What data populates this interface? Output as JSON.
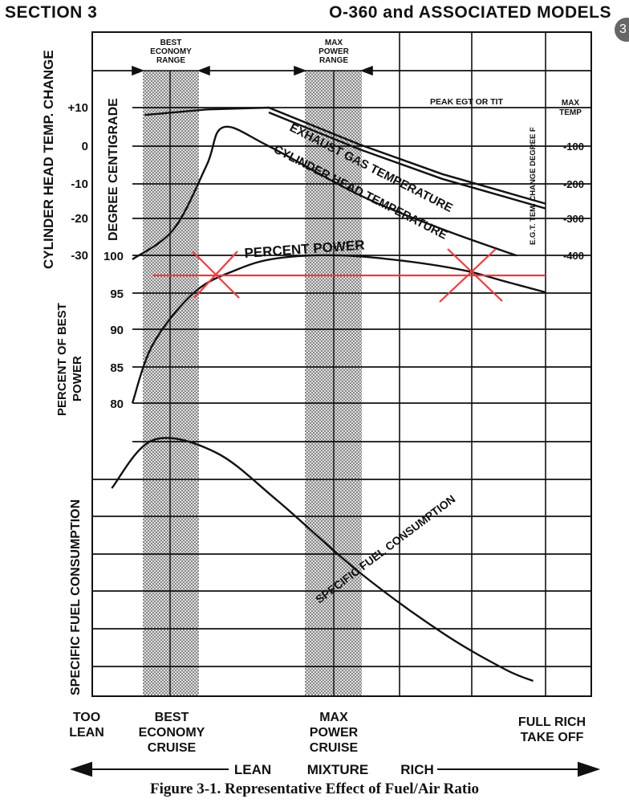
{
  "header": {
    "section": "SECTION 3",
    "models": "O-360 and ASSOCIATED MODELS",
    "badge": "3"
  },
  "caption": "Figure 3-1. Representative Effect of Fuel/Air Ratio",
  "colors": {
    "ink": "#111111",
    "markup": "#f03a3a",
    "shade": "#cfcfcf"
  },
  "axes": {
    "cht_label": "CYLINDER HEAD TEMP. CHANGE",
    "deg_c_label": "DEGREE CENTIGRADE",
    "power_label_1": "PERCENT OF BEST",
    "power_label_2": "POWER",
    "sfc_label": "SPECIFIC FUEL CONSUMPTION",
    "egt_label": "E.G.T. TEM. CHANGE DEGREE F",
    "max_temp_1": "MAX",
    "max_temp_2": "TEMP"
  },
  "ranges": {
    "economy": [
      "BEST",
      "ECONOMY",
      "RANGE"
    ],
    "power": [
      "MAX",
      "POWER",
      "RANGE"
    ]
  },
  "annotations": {
    "peak": "PEAK EGT OR TIT",
    "egt": "EXHAUST GAS TEMPERATURE",
    "cht": "CYLINDER HEAD TEMPERATURE",
    "power": "PERCENT POWER",
    "sfc": "SPECIFIC FUEL CONSUMPTION"
  },
  "bottom": {
    "too_lean": [
      "TOO",
      "LEAN"
    ],
    "best_economy": [
      "BEST",
      "ECONOMY",
      "CRUISE"
    ],
    "max_power": [
      "MAX",
      "POWER",
      "CRUISE"
    ],
    "full_rich": [
      "FULL RICH",
      "TAKE OFF"
    ],
    "lean": "LEAN",
    "mixture": "MIXTURE",
    "rich": "RICH"
  },
  "chart_data": {
    "type": "line",
    "title": "Figure 3-1. Representative Effect of Fuel/Air Ratio",
    "xlabel": "MIXTURE",
    "x_range": [
      "LEAN",
      "RICH"
    ],
    "axes": {
      "cylinder_head_temp_change": {
        "label": "CYLINDER HEAD TEMP. CHANGE",
        "unit": "DEGREE CENTIGRADE",
        "ticks": [
          "+10",
          "0",
          "-10",
          "-20",
          "-30"
        ]
      },
      "percent_of_best_power": {
        "label": "PERCENT OF BEST POWER",
        "ticks": [
          100,
          95,
          90,
          85,
          80
        ],
        "ylim": [
          80,
          100
        ]
      },
      "egt_change": {
        "label": "E.G.T. TEM. CHANGE DEGREE F",
        "ticks": [
          "MAX TEMP",
          "-100",
          "-200",
          "-300",
          "-400"
        ]
      },
      "specific_fuel_consumption": {
        "label": "SPECIFIC FUEL CONSUMPTION",
        "ticks": []
      }
    },
    "series": [
      {
        "name": "EXHAUST GAS TEMPERATURE",
        "axis": "egt_change",
        "x": [
          0.03,
          0.18,
          0.33,
          0.55,
          0.75,
          1.0
        ],
        "values": [
          -20,
          -5,
          0,
          -100,
          -180,
          -260
        ]
      },
      {
        "name": "CYLINDER HEAD TEMPERATURE",
        "axis": "cylinder_head_temp_change",
        "x": [
          0.0,
          0.1,
          0.18,
          0.22,
          0.33,
          0.55,
          0.75,
          0.93
        ],
        "values": [
          -30,
          -22,
          -5,
          5,
          0,
          -13,
          -22,
          -29
        ]
      },
      {
        "name": "PERCENT POWER",
        "axis": "percent_of_best_power",
        "x": [
          0.0,
          0.05,
          0.15,
          0.25,
          0.35,
          0.5,
          0.65,
          0.8,
          0.9,
          1.0
        ],
        "values": [
          80,
          88,
          95,
          98,
          99.6,
          100,
          99.3,
          98,
          96.5,
          95
        ]
      },
      {
        "name": "SPECIFIC FUEL CONSUMPTION",
        "axis": "specific_fuel_consumption",
        "x": [
          -0.05,
          0.05,
          0.2,
          0.35,
          0.55,
          0.75,
          0.9,
          0.97
        ],
        "values": [
          0.8,
          1.0,
          0.95,
          0.75,
          0.45,
          0.2,
          0.05,
          0.0
        ]
      }
    ],
    "bands": [
      {
        "name": "BEST ECONOMY RANGE",
        "x": [
          0.02,
          0.15
        ]
      },
      {
        "name": "MAX POWER RANGE",
        "x": [
          0.42,
          0.55
        ]
      }
    ],
    "grid": true
  }
}
